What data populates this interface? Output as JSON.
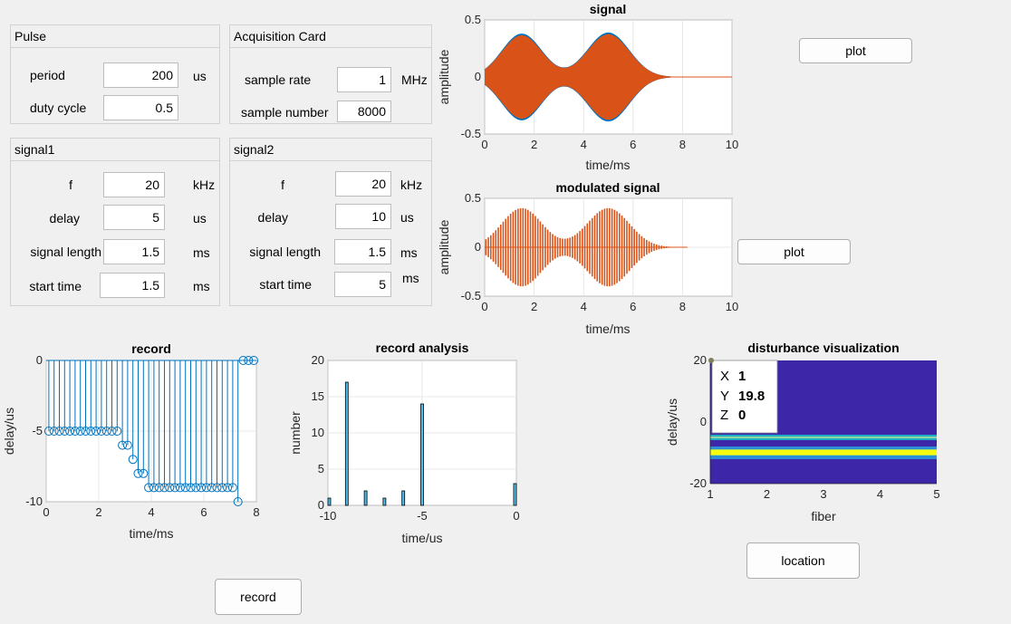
{
  "pulse": {
    "title": "Pulse",
    "period_label": "period",
    "period_value": "200",
    "period_unit": "us",
    "duty_label": "duty cycle",
    "duty_value": "0.5"
  },
  "acq": {
    "title": "Acquisition Card",
    "rate_label": "sample rate",
    "rate_value": "1",
    "rate_unit": "MHz",
    "number_label": "sample number",
    "number_value": "8000"
  },
  "signal1": {
    "title": "signal1",
    "f_label": "f",
    "f_value": "20",
    "f_unit": "kHz",
    "delay_label": "delay",
    "delay_value": "5",
    "delay_unit": "us",
    "length_label": "signal length",
    "length_value": "1.5",
    "length_unit": "ms",
    "start_label": "start time",
    "start_value": "1.5",
    "start_unit": "ms"
  },
  "signal2": {
    "title": "signal2",
    "f_label": "f",
    "f_value": "20",
    "f_unit": "kHz",
    "delay_label": "delay",
    "delay_value": "10",
    "delay_unit": "us",
    "length_label": "signal length",
    "length_value": "1.5",
    "length_unit": "ms",
    "start_label": "start time",
    "start_value": "5",
    "start_unit": "ms"
  },
  "buttons": {
    "plot1": "plot",
    "plot2": "plot",
    "record": "record",
    "location": "location"
  },
  "colors": {
    "signal": "#d95319",
    "signal_under": "#0072bd",
    "stem": "#0072bd",
    "bar_fill": "#4dbeee",
    "heat_bg": "#3e26a8",
    "heat_band_yellow": "#f9fb0e",
    "heat_band_cyan": "#1fb0c4"
  },
  "chart_data": [
    {
      "type": "line",
      "title": "signal",
      "xlabel": "time/ms",
      "ylabel": "amplitude",
      "xlim": [
        0,
        10
      ],
      "ylim": [
        -0.5,
        0.5
      ],
      "xticks": [
        "0",
        "2",
        "4",
        "6",
        "8",
        "10"
      ],
      "yticks": [
        "0.5",
        "0",
        "-0.5"
      ],
      "grid": true,
      "series": [
        {
          "values": "two overlapping bursts, envelope peaks ~0.4 at 1.5 ms and 5 ms, decays to 0 by 8 ms"
        }
      ]
    },
    {
      "type": "line",
      "title": "modulated signal",
      "xlabel": "time/ms",
      "ylabel": "amplitude",
      "xlim": [
        0,
        10
      ],
      "ylim": [
        -0.5,
        0.5
      ],
      "xticks": [
        "0",
        "2",
        "4",
        "6",
        "8",
        "10"
      ],
      "yticks": [
        "0.5",
        "0",
        "-0.5"
      ],
      "grid": true
    },
    {
      "type": "scatter",
      "title": "record",
      "xlabel": "time/ms",
      "ylabel": "delay/us",
      "xlim": [
        0,
        8
      ],
      "ylim": [
        -10,
        0
      ],
      "xticks": [
        "0",
        "2",
        "4",
        "6",
        "8"
      ],
      "yticks": [
        "0",
        "-5",
        "-10"
      ],
      "grid": true,
      "x": [
        0.1,
        0.3,
        0.5,
        0.7,
        0.9,
        1.1,
        1.3,
        1.5,
        1.7,
        1.9,
        2.1,
        2.3,
        2.5,
        2.7,
        2.9,
        3.1,
        3.3,
        3.5,
        3.7,
        3.9,
        4.1,
        4.3,
        4.5,
        4.7,
        4.9,
        5.1,
        5.3,
        5.5,
        5.7,
        5.9,
        6.1,
        6.3,
        6.5,
        6.7,
        6.9,
        7.1,
        7.3,
        7.5,
        7.7,
        7.9
      ],
      "y": [
        -5,
        -5,
        -5,
        -5,
        -5,
        -5,
        -5,
        -5,
        -5,
        -5,
        -5,
        -5,
        -5,
        -5,
        -6,
        -6,
        -7,
        -8,
        -8,
        -9,
        -9,
        -9,
        -9,
        -9,
        -9,
        -9,
        -9,
        -9,
        -9,
        -9,
        -9,
        -9,
        -9,
        -9,
        -9,
        -9,
        -10,
        0,
        0,
        0
      ]
    },
    {
      "type": "bar",
      "title": "record analysis",
      "xlabel": "time/us",
      "ylabel": "number",
      "xlim": [
        -10,
        0
      ],
      "ylim": [
        0,
        20
      ],
      "xticks": [
        "-10",
        "-5",
        "0"
      ],
      "yticks": [
        "20",
        "15",
        "10",
        "5",
        "0"
      ],
      "grid": true,
      "x": [
        -10,
        -9,
        -8,
        -7,
        -6,
        -5,
        0
      ],
      "values": [
        1,
        17,
        2,
        1,
        2,
        14,
        3
      ]
    },
    {
      "type": "heatmap",
      "title": "disturbance visualization",
      "xlabel": "fiber",
      "ylabel": "delay/us",
      "xlim": [
        1,
        5
      ],
      "ylim": [
        -20,
        20
      ],
      "xticks": [
        "1",
        "2",
        "3",
        "4",
        "5"
      ],
      "yticks": [
        "20",
        "0",
        "-20"
      ],
      "datatip": {
        "x_label": "X",
        "x_value": "1",
        "y_label": "Y",
        "y_value": "19.8",
        "z_label": "Z",
        "z_value": "0"
      }
    }
  ]
}
